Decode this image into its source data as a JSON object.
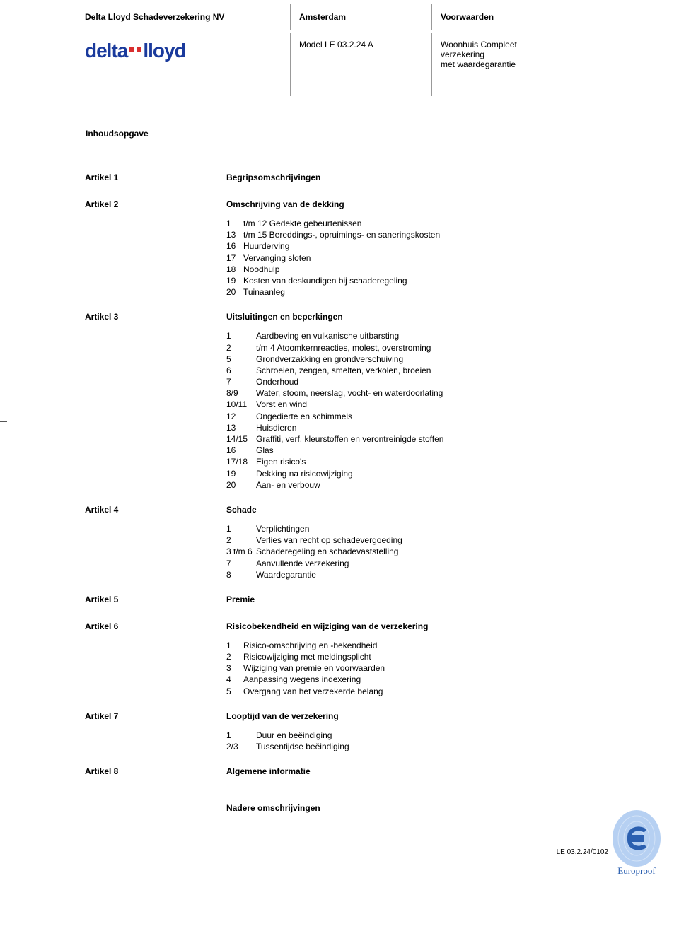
{
  "colors": {
    "text": "#000000",
    "rule": "#999999",
    "logo_blue": "#1a3a9c",
    "logo_red": "#d92e2e",
    "stamp_blue": "#2a5fb0",
    "stamp_fingerprint": "#7aa9e8"
  },
  "fonts": {
    "body_size_pt": 9,
    "header_size_pt": 9,
    "logo_size_pt": 21
  },
  "header": {
    "company": "Delta Lloyd Schadeverzekering NV",
    "city": "Amsterdam",
    "conditions_label": "Voorwaarden",
    "model": "Model LE 03.2.24 A",
    "product_line1": "Woonhuis Compleet",
    "product_line2": "verzekering",
    "product_line3": "met waardegarantie",
    "logo_text": "delta lloyd"
  },
  "toc_heading": "Inhoudsopgave",
  "sections": [
    {
      "label": "Artikel 1",
      "title": "Begripsomschrijvingen",
      "items": []
    },
    {
      "label": "Artikel 2",
      "title": "Omschrijving van de dekking",
      "items": [
        {
          "n": "1",
          "t": "t/m 12  Gedekte gebeurtenissen"
        },
        {
          "n": "13",
          "t": "t/m 15  Bereddings-, opruimings- en saneringskosten"
        },
        {
          "n": "16",
          "t": "Huurderving"
        },
        {
          "n": "17",
          "t": "Vervanging sloten"
        },
        {
          "n": "18",
          "t": "Noodhulp"
        },
        {
          "n": "19",
          "t": "Kosten van deskundigen bij schaderegeling"
        },
        {
          "n": "20",
          "t": "Tuinaanleg"
        }
      ]
    },
    {
      "label": "Artikel 3",
      "title": "Uitsluitingen en beperkingen",
      "items": [
        {
          "n": "1",
          "t": "Aardbeving en vulkanische uitbarsting"
        },
        {
          "n": "2",
          "t": "t/m 4 Atoomkernreacties, molest, overstroming"
        },
        {
          "n": "5",
          "t": "Grondverzakking en grondverschuiving"
        },
        {
          "n": "6",
          "t": "Schroeien, zengen, smelten, verkolen, broeien"
        },
        {
          "n": "7",
          "t": "Onderhoud"
        },
        {
          "n": "8/9",
          "t": "Water, stoom, neerslag, vocht- en waterdoorlating"
        },
        {
          "n": "10/11",
          "t": "Vorst en wind"
        },
        {
          "n": "12",
          "t": "Ongedierte en schimmels"
        },
        {
          "n": "13",
          "t": "Huisdieren"
        },
        {
          "n": "14/15",
          "t": "Graffiti, verf, kleurstoffen en verontreinigde stoffen"
        },
        {
          "n": "16",
          "t": "Glas"
        },
        {
          "n": "17/18",
          "t": "Eigen risico's"
        },
        {
          "n": "19",
          "t": "Dekking na risicowijziging"
        },
        {
          "n": "20",
          "t": "Aan- en verbouw"
        }
      ]
    },
    {
      "label": "Artikel 4",
      "title": "Schade",
      "items": [
        {
          "n": "1",
          "t": "Verplichtingen"
        },
        {
          "n": "2",
          "t": "Verlies van recht op schadevergoeding"
        },
        {
          "n": "3 t/m 6",
          "t": "Schaderegeling en schadevaststelling"
        },
        {
          "n": "7",
          "t": "Aanvullende verzekering"
        },
        {
          "n": "8",
          "t": "Waardegarantie"
        }
      ]
    },
    {
      "label": "Artikel 5",
      "title": "Premie",
      "items": []
    },
    {
      "label": "Artikel 6",
      "title": "Risicobekendheid en wijziging van de verzekering",
      "items": [
        {
          "n": "1",
          "t": "Risico-omschrijving en -bekendheid"
        },
        {
          "n": "2",
          "t": "Risicowijziging met meldingsplicht"
        },
        {
          "n": "3",
          "t": "Wijziging van premie en voorwaarden"
        },
        {
          "n": "4",
          "t": "Aanpassing wegens indexering"
        },
        {
          "n": "5",
          "t": "Overgang van het verzekerde belang"
        }
      ]
    },
    {
      "label": "Artikel 7",
      "title": "Looptijd van de verzekering",
      "items": [
        {
          "n": "1",
          "t": "Duur en beëindiging"
        },
        {
          "n": "2/3",
          "t": "Tussentijdse beëindiging"
        }
      ]
    },
    {
      "label": "Artikel 8",
      "title": "Algemene informatie",
      "items": []
    }
  ],
  "trailing_heading": "Nadere omschrijvingen",
  "footer_ref": "LE 03.2.24/0102",
  "stamp_text": "Europroof"
}
